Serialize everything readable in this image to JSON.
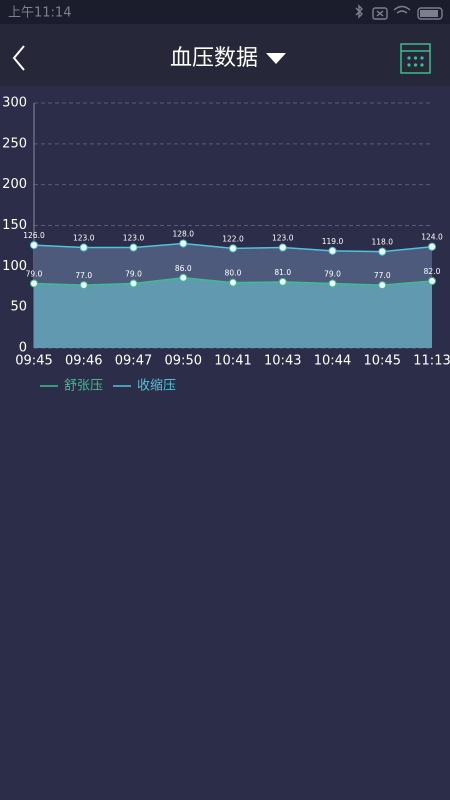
{
  "status_bar": {
    "time": "上午11:14"
  },
  "header": {
    "title": "血压数据"
  },
  "chart_data": {
    "type": "area",
    "categories": [
      "09:45",
      "09:46",
      "09:47",
      "09:50",
      "10:41",
      "10:43",
      "10:44",
      "10:45",
      "11:13"
    ],
    "series": [
      {
        "name": "舒张压",
        "color": "#3dbd8e",
        "fill": "#6199b0",
        "values": [
          79,
          77,
          79,
          86,
          80,
          81,
          79,
          77,
          82
        ],
        "value_labels": [
          "79.0",
          "77.0",
          "79.0",
          "86.0",
          "80.0",
          "81.0",
          "79.0",
          "77.0",
          "82.0"
        ]
      },
      {
        "name": "收缩压",
        "color": "#4fc3d8",
        "fill": "#4e5a7b",
        "values": [
          126,
          123,
          123,
          128,
          122,
          123,
          119,
          118,
          124
        ],
        "value_labels": [
          "126.0",
          "123.0",
          "123.0",
          "128.0",
          "122.0",
          "123.0",
          "119.0",
          "118.0",
          "124.0"
        ]
      }
    ],
    "ylim": [
      0,
      300
    ],
    "yticks": [
      0,
      50,
      100,
      150,
      200,
      250,
      300
    ],
    "grid": true
  }
}
